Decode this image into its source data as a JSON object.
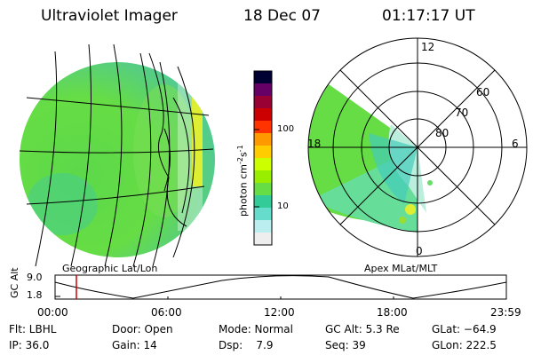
{
  "header": {
    "instrument": "Ultraviolet Imager",
    "date": "18 Dec 07",
    "time": "01:17:17 UT"
  },
  "left_panel": {
    "caption": "Geographic Lat/Lon"
  },
  "right_panel": {
    "caption": "Apex MLat/MLT",
    "mlt_labels": {
      "top": "12",
      "left": "18",
      "right": "6",
      "bottom": "0"
    },
    "lat_labels": [
      "60",
      "70",
      "80"
    ]
  },
  "colorbar": {
    "unit_label": "photon cm",
    "unit_exp1": "-2",
    "unit_mid": "s",
    "unit_exp2": "-1",
    "ticks": [
      "100",
      "10"
    ],
    "colors": [
      "#000033",
      "#660066",
      "#990033",
      "#cc0000",
      "#ff3300",
      "#ff9900",
      "#ffcc00",
      "#ccff00",
      "#99ee00",
      "#66dd44",
      "#33cc99",
      "#66ddcc",
      "#bbeeee",
      "#eeeeee"
    ]
  },
  "altitude_plot": {
    "ylabel": "GC Alt",
    "y_ticks": [
      "9.0",
      "1.8"
    ],
    "time_ticks": [
      "00:00",
      "06:00",
      "12:00",
      "18:00",
      "23:59"
    ]
  },
  "status": {
    "filter": "Flt: LBHL",
    "door": "Door: Open",
    "mode": "Mode: Normal",
    "gc_alt": "GC Alt: 5.3 Re",
    "glat": "GLat: −64.9",
    "ip": "IP: 36.0",
    "gain": "Gain: 14",
    "dsp": "Dsp:    7.9",
    "seq": "Seq: 39",
    "glon": "GLon: 222.5"
  }
}
